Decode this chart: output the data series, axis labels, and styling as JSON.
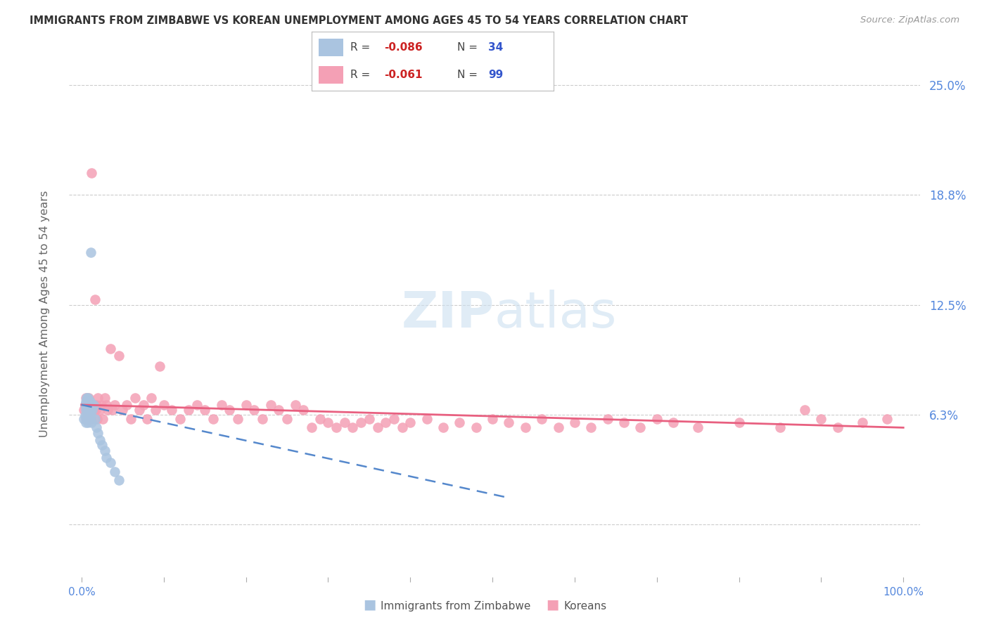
{
  "title": "IMMIGRANTS FROM ZIMBABWE VS KOREAN UNEMPLOYMENT AMONG AGES 45 TO 54 YEARS CORRELATION CHART",
  "source": "Source: ZipAtlas.com",
  "ylabel": "Unemployment Among Ages 45 to 54 years",
  "xlim": [
    0.0,
    1.0
  ],
  "ylim": [
    -0.03,
    0.27
  ],
  "ytick_vals": [
    0.0,
    0.0625,
    0.125,
    0.1875,
    0.25
  ],
  "ytick_labels_right": [
    "",
    "6.3%",
    "12.5%",
    "18.8%",
    "25.0%"
  ],
  "xtick_vals": [
    0.0,
    0.1,
    0.2,
    0.3,
    0.4,
    0.5,
    0.6,
    0.7,
    0.8,
    0.9,
    1.0
  ],
  "xtick_labels": [
    "0.0%",
    "",
    "",
    "",
    "",
    "",
    "",
    "",
    "",
    "",
    "100.0%"
  ],
  "watermark": "ZIPatlas",
  "color_zimbabwe": "#aac4e0",
  "color_korean": "#f4a0b5",
  "color_line_zimbabwe": "#5588cc",
  "color_line_korean": "#e86080",
  "color_axis_tick": "#5588dd",
  "color_grid": "#cccccc",
  "color_title": "#333333",
  "color_source": "#999999",
  "color_ylabel": "#666666",
  "legend_r1_text": "R = ",
  "legend_r1_val": "-0.086",
  "legend_n1_text": "N = ",
  "legend_n1_val": "34",
  "legend_r2_text": "R = ",
  "legend_r2_val": "-0.061",
  "legend_n2_text": "N = ",
  "legend_n2_val": "99",
  "color_r_val": "#cc2222",
  "color_n_val": "#3355cc",
  "color_legend_label": "#555555",
  "zim_x": [
    0.003,
    0.004,
    0.004,
    0.005,
    0.005,
    0.005,
    0.006,
    0.006,
    0.006,
    0.007,
    0.007,
    0.007,
    0.008,
    0.008,
    0.008,
    0.009,
    0.009,
    0.01,
    0.01,
    0.011,
    0.011,
    0.012,
    0.013,
    0.015,
    0.016,
    0.018,
    0.02,
    0.022,
    0.025,
    0.028,
    0.03,
    0.035,
    0.04,
    0.045
  ],
  "zim_y": [
    0.06,
    0.062,
    0.068,
    0.058,
    0.065,
    0.07,
    0.06,
    0.068,
    0.072,
    0.062,
    0.065,
    0.068,
    0.058,
    0.065,
    0.072,
    0.06,
    0.068,
    0.065,
    0.07,
    0.062,
    0.155,
    0.058,
    0.065,
    0.068,
    0.06,
    0.055,
    0.052,
    0.048,
    0.045,
    0.042,
    0.038,
    0.035,
    0.03,
    0.025
  ],
  "kor_x": [
    0.003,
    0.004,
    0.005,
    0.005,
    0.006,
    0.006,
    0.007,
    0.007,
    0.008,
    0.008,
    0.009,
    0.009,
    0.01,
    0.01,
    0.011,
    0.012,
    0.013,
    0.014,
    0.015,
    0.016,
    0.017,
    0.018,
    0.019,
    0.02,
    0.022,
    0.024,
    0.026,
    0.028,
    0.03,
    0.032,
    0.035,
    0.038,
    0.04,
    0.045,
    0.05,
    0.055,
    0.06,
    0.065,
    0.07,
    0.075,
    0.08,
    0.085,
    0.09,
    0.095,
    0.1,
    0.11,
    0.12,
    0.13,
    0.14,
    0.15,
    0.16,
    0.17,
    0.18,
    0.19,
    0.2,
    0.21,
    0.22,
    0.23,
    0.24,
    0.25,
    0.26,
    0.27,
    0.28,
    0.29,
    0.3,
    0.31,
    0.32,
    0.33,
    0.34,
    0.35,
    0.36,
    0.37,
    0.38,
    0.39,
    0.4,
    0.42,
    0.44,
    0.46,
    0.48,
    0.5,
    0.52,
    0.54,
    0.56,
    0.58,
    0.6,
    0.62,
    0.64,
    0.66,
    0.68,
    0.7,
    0.72,
    0.75,
    0.8,
    0.85,
    0.88,
    0.9,
    0.92,
    0.95,
    0.98
  ],
  "kor_y": [
    0.065,
    0.068,
    0.06,
    0.072,
    0.065,
    0.068,
    0.062,
    0.07,
    0.065,
    0.068,
    0.06,
    0.072,
    0.065,
    0.068,
    0.06,
    0.2,
    0.065,
    0.068,
    0.065,
    0.128,
    0.065,
    0.068,
    0.06,
    0.072,
    0.065,
    0.068,
    0.06,
    0.072,
    0.068,
    0.065,
    0.1,
    0.065,
    0.068,
    0.096,
    0.065,
    0.068,
    0.06,
    0.072,
    0.065,
    0.068,
    0.06,
    0.072,
    0.065,
    0.09,
    0.068,
    0.065,
    0.06,
    0.065,
    0.068,
    0.065,
    0.06,
    0.068,
    0.065,
    0.06,
    0.068,
    0.065,
    0.06,
    0.068,
    0.065,
    0.06,
    0.068,
    0.065,
    0.055,
    0.06,
    0.058,
    0.055,
    0.058,
    0.055,
    0.058,
    0.06,
    0.055,
    0.058,
    0.06,
    0.055,
    0.058,
    0.06,
    0.055,
    0.058,
    0.055,
    0.06,
    0.058,
    0.055,
    0.06,
    0.055,
    0.058,
    0.055,
    0.06,
    0.058,
    0.055,
    0.06,
    0.058,
    0.055,
    0.058,
    0.055,
    0.065,
    0.06,
    0.055,
    0.058,
    0.06
  ]
}
